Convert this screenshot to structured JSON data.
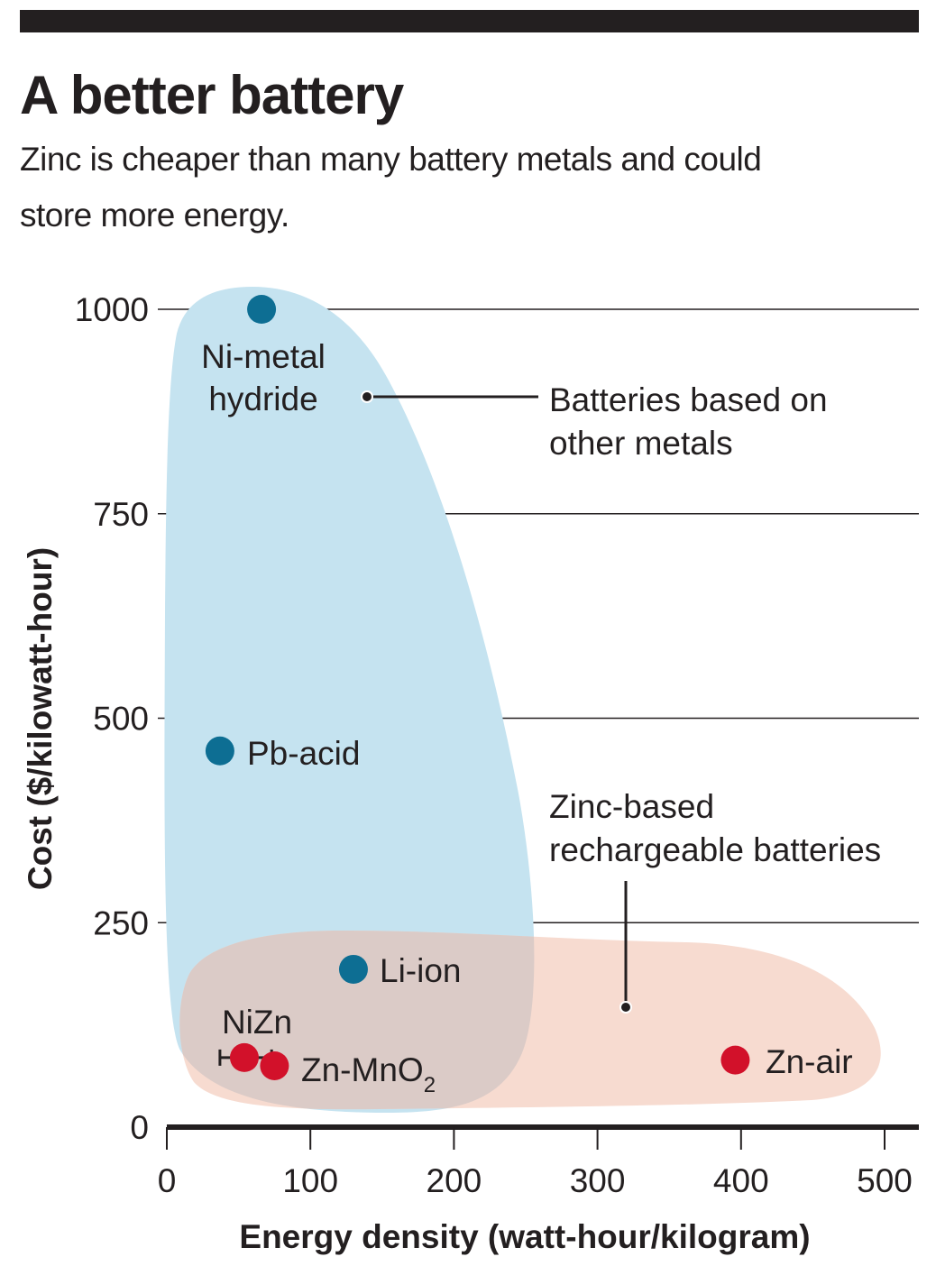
{
  "header": {
    "title": "A better battery",
    "subtitle": "Zinc is cheaper than many battery metals and could store more energy."
  },
  "colors": {
    "other_metals_point": "#0d6e93",
    "zinc_point": "#d2112a",
    "other_metals_region": "#c5e3f0",
    "zinc_region": "#f7dbd0",
    "overlap_region": "#dbcbc7",
    "text": "#231f20"
  },
  "chart_data": {
    "type": "scatter",
    "title": "A better battery",
    "subtitle": "Zinc is cheaper than many battery metals and could store more energy.",
    "xlabel": "Energy density (watt-hour/kilogram)",
    "ylabel": "Cost ($/kilowatt-hour)",
    "xlim": [
      0,
      520
    ],
    "ylim": [
      0,
      1000
    ],
    "xticks": [
      "0",
      "100",
      "200",
      "300",
      "400",
      "500"
    ],
    "yticks": [
      "0",
      "250",
      "500",
      "750",
      "1000"
    ],
    "grid": "horizontal",
    "series": [
      {
        "name": "Batteries based on other metals",
        "color": "#0d6e93",
        "points": [
          {
            "label": "Ni-metal hydride",
            "x": 66,
            "y": 1000
          },
          {
            "label": "Pb-acid",
            "x": 37,
            "y": 460
          },
          {
            "label": "Li-ion",
            "x": 130,
            "y": 193
          }
        ]
      },
      {
        "name": "Zinc-based rechargeable batteries",
        "color": "#d2112a",
        "points": [
          {
            "label": "NiZn",
            "x": 54,
            "y": 85,
            "x_error": [
              37,
              73
            ]
          },
          {
            "label": "Zn-MnO2",
            "x": 75,
            "y": 75
          },
          {
            "label": "Zn-air",
            "x": 396,
            "y": 82
          }
        ]
      }
    ],
    "annotations": [
      {
        "text": "Batteries based on other metals"
      },
      {
        "text": "Zinc-based rechargeable batteries"
      }
    ]
  }
}
